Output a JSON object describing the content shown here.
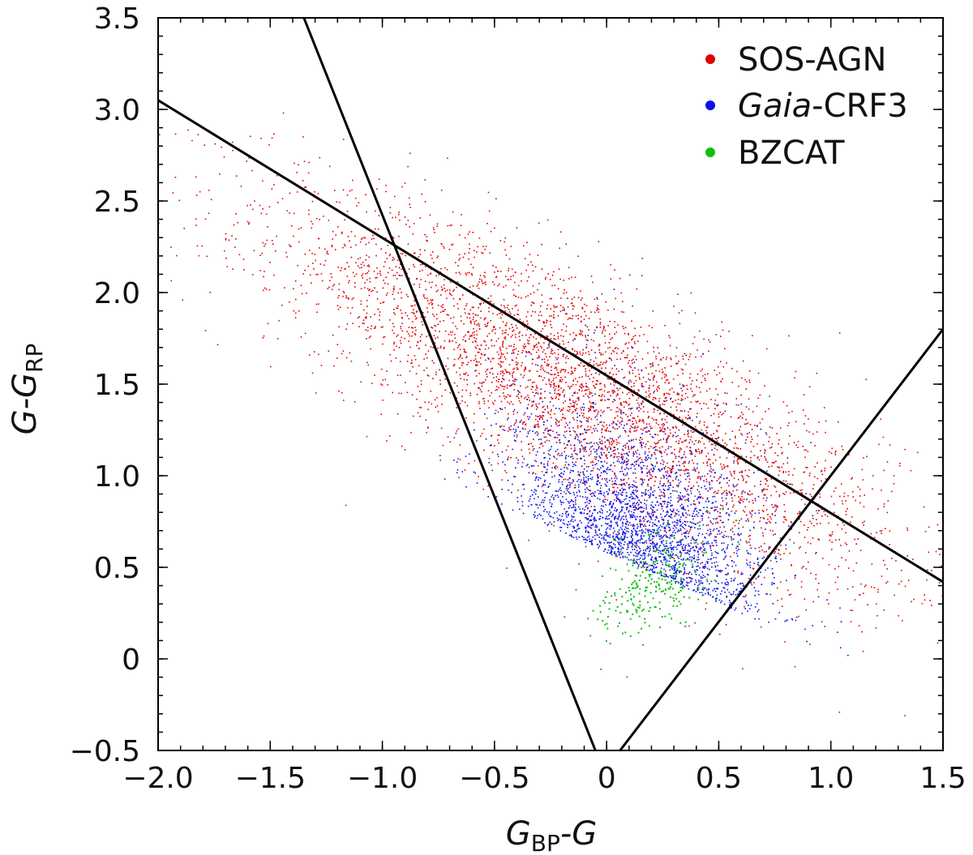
{
  "chart_data": {
    "type": "scatter",
    "title": "",
    "xlabel": {
      "main": "G",
      "sub": "BP",
      "suffix": "-G"
    },
    "ylabel": {
      "main": "G",
      "mid": "-G",
      "sub": "RP"
    },
    "xlim": [
      -2.0,
      1.5
    ],
    "ylim": [
      -0.5,
      3.5
    ],
    "x_ticks": [
      -2.0,
      -1.5,
      -1.0,
      -0.5,
      0,
      0.5,
      1.0,
      1.5
    ],
    "x_tick_labels": [
      "−2.0",
      "−1.5",
      "−1.0",
      "−0.5",
      "0",
      "0.5",
      "1.0",
      "1.5"
    ],
    "y_ticks": [
      -0.5,
      0,
      0.5,
      1.0,
      1.5,
      2.0,
      2.5,
      3.0,
      3.5
    ],
    "y_tick_labels": [
      "−0.5",
      "0",
      "0.5",
      "1.0",
      "1.5",
      "2.0",
      "2.5",
      "3.0",
      "3.5"
    ],
    "legend_position": "top-right",
    "series": [
      {
        "name": "SOS-AGN",
        "color": "#e00000",
        "mean": [
          -0.1,
          1.45
        ],
        "spread": [
          0.55,
          0.55
        ],
        "count": 4200
      },
      {
        "name": "Gaia-CRF3",
        "color": "#0a10e8",
        "mean": [
          0.15,
          0.6
        ],
        "spread": [
          0.28,
          0.35
        ],
        "count": 2600
      },
      {
        "name": "BZCAT",
        "color": "#10c010",
        "mean": [
          0.2,
          0.42
        ],
        "spread": [
          0.12,
          0.14
        ],
        "count": 260
      }
    ],
    "legend": [
      {
        "prefix": "",
        "italic": "",
        "text": "SOS-AGN"
      },
      {
        "prefix": "",
        "italic": "Gaia",
        "text": "-CRF3"
      },
      {
        "prefix": "",
        "italic": "",
        "text": "BZCAT"
      }
    ],
    "lines": [
      {
        "name": "line-a",
        "x": [
          -2.0,
          1.5
        ],
        "y": [
          3.05,
          0.42
        ]
      },
      {
        "name": "line-b",
        "x": [
          -1.35,
          -0.05
        ],
        "y": [
          3.5,
          -0.5
        ]
      },
      {
        "name": "line-c",
        "x": [
          0.06,
          1.5
        ],
        "y": [
          -0.5,
          1.8
        ]
      }
    ]
  }
}
